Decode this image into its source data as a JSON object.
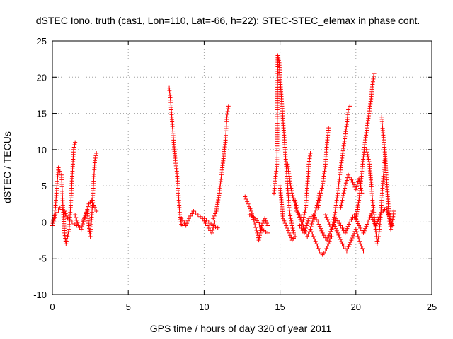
{
  "chart_data": {
    "type": "scatter",
    "title": "dSTEC Iono. truth (cas1, Lon=110, Lat=-66, h=22): STEC-STEC_elemax in phase cont.",
    "xlabel": "GPS time / hours of day 320 of year 2011",
    "ylabel": "dSTEC  / TECUs",
    "xlim": [
      0,
      25
    ],
    "ylim": [
      -10,
      25
    ],
    "xticks": [
      0,
      5,
      10,
      15,
      20,
      25
    ],
    "yticks": [
      -10,
      -5,
      0,
      5,
      10,
      15,
      20,
      25
    ],
    "grid": true,
    "marker": "+",
    "color": "#ff0000",
    "series": [
      {
        "name": "dSTEC",
        "arcs": [
          [
            [
              0.0,
              -0.5
            ],
            [
              0.1,
              0.5
            ],
            [
              0.2,
              2.0
            ],
            [
              0.3,
              5.0
            ],
            [
              0.4,
              7.5
            ],
            [
              0.5,
              7.0
            ],
            [
              0.6,
              6.5
            ],
            [
              0.7,
              2.0
            ],
            [
              0.8,
              -1.5
            ],
            [
              0.9,
              -3.0
            ],
            [
              1.0,
              -2.0
            ],
            [
              1.1,
              -1.0
            ],
            [
              1.2,
              2.0
            ],
            [
              1.3,
              6.0
            ],
            [
              1.4,
              10.0
            ],
            [
              1.5,
              11.0
            ]
          ],
          [
            [
              0.0,
              0.0
            ],
            [
              0.2,
              1.0
            ],
            [
              0.5,
              2.0
            ],
            [
              0.8,
              1.5
            ],
            [
              1.0,
              0.5
            ],
            [
              1.3,
              0.0
            ],
            [
              1.6,
              -0.5
            ]
          ],
          [
            [
              1.5,
              1.0
            ],
            [
              1.7,
              -0.5
            ],
            [
              1.9,
              -1.0
            ],
            [
              2.1,
              0.5
            ],
            [
              2.3,
              1.5
            ],
            [
              2.4,
              -0.5
            ],
            [
              2.5,
              -2.0
            ],
            [
              2.6,
              1.0
            ],
            [
              2.7,
              5.0
            ],
            [
              2.8,
              8.5
            ],
            [
              2.9,
              9.5
            ]
          ],
          [
            [
              2.0,
              0.0
            ],
            [
              2.2,
              1.0
            ],
            [
              2.4,
              2.5
            ],
            [
              2.6,
              3.0
            ],
            [
              2.8,
              2.0
            ],
            [
              2.9,
              1.5
            ]
          ],
          [
            [
              7.7,
              18.5
            ],
            [
              7.8,
              16.5
            ],
            [
              7.9,
              13.5
            ],
            [
              8.0,
              11.0
            ],
            [
              8.1,
              8.5
            ],
            [
              8.2,
              7.0
            ],
            [
              8.3,
              4.0
            ],
            [
              8.4,
              1.0
            ],
            [
              8.5,
              -0.3
            ],
            [
              8.6,
              -0.5
            ]
          ],
          [
            [
              8.5,
              0.5
            ],
            [
              8.8,
              -0.5
            ],
            [
              9.0,
              0.5
            ],
            [
              9.3,
              1.5
            ],
            [
              9.6,
              1.0
            ],
            [
              9.9,
              0.5
            ],
            [
              10.2,
              -0.5
            ],
            [
              10.5,
              -1.5
            ],
            [
              10.7,
              0.0
            ]
          ],
          [
            [
              10.6,
              0.5
            ],
            [
              10.8,
              1.5
            ],
            [
              11.0,
              4.0
            ],
            [
              11.2,
              7.5
            ],
            [
              11.4,
              11.0
            ],
            [
              11.5,
              14.5
            ],
            [
              11.6,
              16.0
            ]
          ],
          [
            [
              10.0,
              0.5
            ],
            [
              10.3,
              0.0
            ],
            [
              10.6,
              -0.5
            ],
            [
              10.9,
              -0.8
            ]
          ],
          [
            [
              12.7,
              3.5
            ],
            [
              12.9,
              2.5
            ],
            [
              13.1,
              1.5
            ],
            [
              13.3,
              0.0
            ],
            [
              13.5,
              -1.5
            ],
            [
              13.6,
              -2.5
            ],
            [
              13.8,
              -0.5
            ],
            [
              14.0,
              0.5
            ],
            [
              14.2,
              -0.5
            ]
          ],
          [
            [
              13.0,
              1.0
            ],
            [
              13.4,
              0.5
            ],
            [
              13.8,
              -1.0
            ],
            [
              14.2,
              -1.5
            ]
          ],
          [
            [
              14.6,
              4.0
            ],
            [
              14.7,
              6.0
            ],
            [
              14.8,
              8.0
            ],
            [
              14.85,
              23.0
            ],
            [
              14.95,
              22.0
            ],
            [
              15.0,
              20.0
            ],
            [
              15.1,
              17.0
            ],
            [
              15.2,
              14.0
            ],
            [
              15.3,
              11.0
            ],
            [
              15.4,
              8.0
            ],
            [
              15.5,
              5.0
            ],
            [
              15.6,
              2.0
            ],
            [
              15.7,
              0.5
            ],
            [
              15.8,
              -0.5
            ],
            [
              15.9,
              -1.5
            ],
            [
              16.0,
              -2.0
            ]
          ],
          [
            [
              15.0,
              5.0
            ],
            [
              15.2,
              0.5
            ],
            [
              15.4,
              -0.5
            ],
            [
              15.6,
              -1.5
            ],
            [
              15.8,
              -2.5
            ],
            [
              16.0,
              -2.0
            ]
          ],
          [
            [
              15.5,
              8.0
            ],
            [
              15.7,
              5.0
            ],
            [
              15.9,
              3.0
            ],
            [
              16.1,
              1.5
            ],
            [
              16.3,
              1.0
            ],
            [
              16.5,
              0.0
            ],
            [
              16.7,
              2.0
            ],
            [
              16.8,
              5.0
            ],
            [
              16.9,
              8.0
            ],
            [
              17.0,
              9.5
            ]
          ],
          [
            [
              16.0,
              3.0
            ],
            [
              16.2,
              1.0
            ],
            [
              16.4,
              0.0
            ],
            [
              16.6,
              -1.0
            ],
            [
              16.8,
              -2.0
            ],
            [
              17.0,
              -1.0
            ],
            [
              17.2,
              0.5
            ],
            [
              17.4,
              2.0
            ],
            [
              17.6,
              4.0
            ]
          ],
          [
            [
              17.0,
              -1.0
            ],
            [
              17.2,
              -2.0
            ],
            [
              17.4,
              -3.0
            ],
            [
              17.6,
              -4.0
            ],
            [
              17.8,
              -4.5
            ],
            [
              18.0,
              -4.0
            ],
            [
              18.2,
              -3.0
            ],
            [
              18.4,
              -2.0
            ]
          ],
          [
            [
              17.5,
              2.0
            ],
            [
              17.8,
              5.0
            ],
            [
              18.0,
              8.0
            ],
            [
              18.1,
              11.0
            ],
            [
              18.2,
              13.0
            ]
          ],
          [
            [
              18.0,
              1.0
            ],
            [
              18.2,
              0.0
            ],
            [
              18.4,
              -1.0
            ],
            [
              18.6,
              1.0
            ],
            [
              18.8,
              4.0
            ],
            [
              19.0,
              7.5
            ],
            [
              19.2,
              10.5
            ],
            [
              19.4,
              13.5
            ],
            [
              19.5,
              15.5
            ],
            [
              19.6,
              16.0
            ]
          ],
          [
            [
              18.5,
              0.0
            ],
            [
              18.8,
              -1.5
            ],
            [
              19.1,
              -3.0
            ],
            [
              19.4,
              -4.0
            ],
            [
              19.7,
              -2.5
            ],
            [
              20.0,
              -1.0
            ],
            [
              20.3,
              -3.0
            ],
            [
              20.5,
              -4.0
            ]
          ],
          [
            [
              19.0,
              2.0
            ],
            [
              19.3,
              5.0
            ],
            [
              19.5,
              6.5
            ],
            [
              19.8,
              5.5
            ],
            [
              20.0,
              4.5
            ],
            [
              20.2,
              6.0
            ],
            [
              20.4,
              4.0
            ]
          ],
          [
            [
              20.0,
              0.5
            ],
            [
              20.2,
              3.0
            ],
            [
              20.4,
              7.0
            ],
            [
              20.6,
              11.0
            ],
            [
              20.8,
              14.0
            ],
            [
              21.0,
              17.0
            ],
            [
              21.1,
              19.0
            ],
            [
              21.2,
              20.5
            ]
          ],
          [
            [
              20.7,
              10.0
            ],
            [
              20.9,
              8.0
            ],
            [
              21.1,
              3.0
            ],
            [
              21.3,
              -1.0
            ],
            [
              21.4,
              -3.0
            ],
            [
              21.5,
              -2.0
            ],
            [
              21.6,
              0.0
            ],
            [
              21.7,
              3.0
            ],
            [
              21.8,
              6.0
            ],
            [
              21.9,
              8.5
            ]
          ],
          [
            [
              21.7,
              14.5
            ],
            [
              21.8,
              12.0
            ],
            [
              21.9,
              10.0
            ],
            [
              22.0,
              6.5
            ],
            [
              22.1,
              3.5
            ],
            [
              22.2,
              0.5
            ],
            [
              22.3,
              -1.0
            ],
            [
              22.4,
              0.0
            ],
            [
              22.5,
              1.5
            ]
          ],
          [
            [
              21.0,
              1.0
            ],
            [
              21.3,
              -0.5
            ],
            [
              21.6,
              1.0
            ],
            [
              22.0,
              2.0
            ],
            [
              22.4,
              -0.5
            ]
          ],
          [
            [
              16.3,
              -0.5
            ],
            [
              16.6,
              -1.5
            ],
            [
              16.9,
              0.5
            ],
            [
              17.2,
              1.0
            ],
            [
              17.5,
              0.0
            ],
            [
              17.8,
              -1.5
            ],
            [
              18.1,
              -2.5
            ],
            [
              18.4,
              -1.0
            ],
            [
              18.7,
              0.5
            ],
            [
              19.0,
              -0.5
            ],
            [
              19.3,
              -1.5
            ],
            [
              19.6,
              0.0
            ],
            [
              19.9,
              1.0
            ],
            [
              20.2,
              -0.5
            ],
            [
              20.5,
              -1.5
            ],
            [
              20.8,
              0.0
            ],
            [
              21.1,
              1.5
            ]
          ]
        ]
      }
    ]
  }
}
